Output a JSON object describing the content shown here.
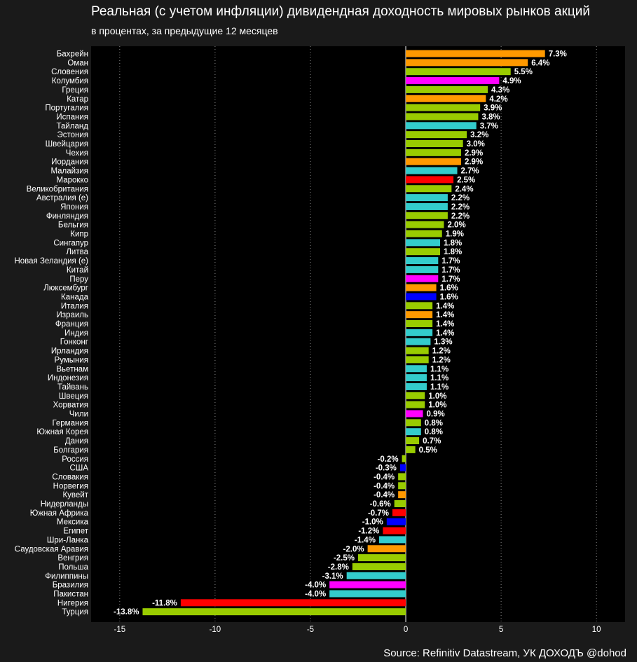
{
  "title": "Реальная (с учетом инфляции) дивидендная доходность мировых рынков акций",
  "subtitle": "в процентах, за предыдущие 12 месяцев",
  "source": "Source: Refinitiv Datastream, УК ДОХОДЪ @dohod",
  "colors": {
    "background": "#1a1a1a",
    "plot_background": "#000000",
    "orange": "#ff9900",
    "green": "#99cc00",
    "magenta": "#ff00ff",
    "cyan": "#33cccc",
    "red": "#ff0000",
    "blue": "#0000ff",
    "grid": "#888888"
  },
  "chart_data": {
    "type": "bar",
    "orientation": "horizontal",
    "xlim": [
      -16.5,
      11.5
    ],
    "xticks": [
      -15,
      -10,
      -5,
      0,
      5,
      10
    ],
    "grid": "vertical dotted",
    "categories": [
      "Бахрейн",
      "Оман",
      "Словения",
      "Колумбия",
      "Греция",
      "Катар",
      "Португалия",
      "Испания",
      "Тайланд",
      "Эстония",
      "Швейцария",
      "Чехия",
      "Иордания",
      "Малайзия",
      "Марокко",
      "Великобритания",
      "Австралия (е)",
      "Япония",
      "Финляндия",
      "Бельгия",
      "Кипр",
      "Сингапур",
      "Литва",
      "Новая Зеландия (е)",
      "Китай",
      "Перу",
      "Люксембург",
      "Канада",
      "Италия",
      "Израиль",
      "Франция",
      "Индия",
      "Гонконг",
      "Ирландия",
      "Румыния",
      "Вьетнам",
      "Индонезия",
      "Тайвань",
      "Швеция",
      "Хорватия",
      "Чили",
      "Германия",
      "Южная Корея",
      "Дания",
      "Болгария",
      "Россия",
      "США",
      "Словакия",
      "Норвегия",
      "Кувейт",
      "Нидерланды",
      "Южная Африка",
      "Мексика",
      "Египет",
      "Шри-Ланка",
      "Саудовская Аравия",
      "Венгрия",
      "Польша",
      "Филиппины",
      "Бразилия",
      "Пакистан",
      "Нигерия",
      "Турция"
    ],
    "values": [
      7.3,
      6.4,
      5.5,
      4.9,
      4.3,
      4.2,
      3.9,
      3.8,
      3.7,
      3.2,
      3.0,
      2.9,
      2.9,
      2.7,
      2.5,
      2.4,
      2.2,
      2.2,
      2.2,
      2.0,
      1.9,
      1.8,
      1.8,
      1.7,
      1.7,
      1.7,
      1.6,
      1.6,
      1.4,
      1.4,
      1.4,
      1.4,
      1.3,
      1.2,
      1.2,
      1.1,
      1.1,
      1.1,
      1.0,
      1.0,
      0.9,
      0.8,
      0.8,
      0.7,
      0.5,
      -0.2,
      -0.3,
      -0.4,
      -0.4,
      -0.4,
      -0.6,
      -0.7,
      -1.0,
      -1.2,
      -1.4,
      -2.0,
      -2.5,
      -2.8,
      -3.1,
      -4.0,
      -4.0,
      -11.8,
      -13.8
    ],
    "labels": [
      "7.3%",
      "6.4%",
      "5.5%",
      "4.9%",
      "4.3%",
      "4.2%",
      "3.9%",
      "3.8%",
      "3.7%",
      "3.2%",
      "3.0%",
      "2.9%",
      "2.9%",
      "2.7%",
      "2.5%",
      "2.4%",
      "2.2%",
      "2.2%",
      "2.2%",
      "2.0%",
      "1.9%",
      "1.8%",
      "1.8%",
      "1.7%",
      "1.7%",
      "1.7%",
      "1.6%",
      "1.6%",
      "1.4%",
      "1.4%",
      "1.4%",
      "1.4%",
      "1.3%",
      "1.2%",
      "1.2%",
      "1.1%",
      "1.1%",
      "1.1%",
      "1.0%",
      "1.0%",
      "0.9%",
      "0.8%",
      "0.8%",
      "0.7%",
      "0.5%",
      "-0.2%",
      "-0.3%",
      "-0.4%",
      "-0.4%",
      "-0.4%",
      "-0.6%",
      "-0.7%",
      "-1.0%",
      "-1.2%",
      "-1.4%",
      "-2.0%",
      "-2.5%",
      "-2.8%",
      "-3.1%",
      "-4.0%",
      "-4.0%",
      "-11.8%",
      "-13.8%"
    ],
    "bar_colors": [
      "orange",
      "orange",
      "green",
      "magenta",
      "green",
      "orange",
      "green",
      "green",
      "cyan",
      "green",
      "green",
      "green",
      "orange",
      "cyan",
      "red",
      "green",
      "cyan",
      "cyan",
      "green",
      "green",
      "green",
      "cyan",
      "green",
      "cyan",
      "cyan",
      "magenta",
      "orange",
      "blue",
      "green",
      "orange",
      "green",
      "cyan",
      "cyan",
      "green",
      "green",
      "cyan",
      "cyan",
      "cyan",
      "green",
      "green",
      "magenta",
      "green",
      "cyan",
      "green",
      "green",
      "green",
      "blue",
      "green",
      "green",
      "orange",
      "green",
      "red",
      "blue",
      "red",
      "cyan",
      "orange",
      "green",
      "green",
      "cyan",
      "magenta",
      "cyan",
      "red",
      "green"
    ]
  }
}
